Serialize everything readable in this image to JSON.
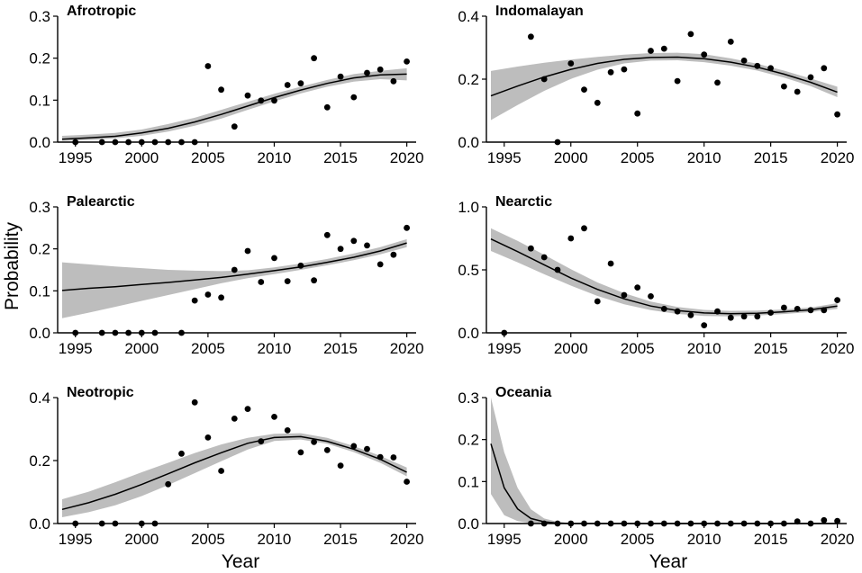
{
  "chart_data": {
    "type": "scatter",
    "xlabel": "Year",
    "ylabel": "Probability",
    "xlim": [
      1994,
      2020.5
    ],
    "x_ticks": [
      1995,
      2000,
      2005,
      2010,
      2015,
      2020
    ],
    "panels": [
      {
        "title": "Afrotropic",
        "ylim": [
          0,
          0.3
        ],
        "y_ticks": [
          "0.0",
          "0.1",
          "0.2",
          "0.3"
        ],
        "points": [
          [
            1995,
            0.0
          ],
          [
            1997,
            0.0
          ],
          [
            1998,
            0.0
          ],
          [
            1999,
            0.0
          ],
          [
            2000,
            0.0
          ],
          [
            2001,
            0.0
          ],
          [
            2002,
            0.0
          ],
          [
            2003,
            0.0
          ],
          [
            2004,
            0.0
          ],
          [
            2005,
            0.181
          ],
          [
            2006,
            0.125
          ],
          [
            2007,
            0.037
          ],
          [
            2008,
            0.111
          ],
          [
            2009,
            0.099
          ],
          [
            2010,
            0.099
          ],
          [
            2011,
            0.136
          ],
          [
            2012,
            0.14
          ],
          [
            2013,
            0.2
          ],
          [
            2014,
            0.083
          ],
          [
            2015,
            0.156
          ],
          [
            2016,
            0.107
          ],
          [
            2017,
            0.165
          ],
          [
            2018,
            0.173
          ],
          [
            2019,
            0.145
          ],
          [
            2020,
            0.192
          ]
        ],
        "fit": {
          "x": [
            1994,
            1996,
            1998,
            2000,
            2002,
            2004,
            2006,
            2008,
            2010,
            2012,
            2014,
            2016,
            2018,
            2020
          ],
          "y": [
            0.007,
            0.01,
            0.014,
            0.022,
            0.033,
            0.048,
            0.066,
            0.086,
            0.106,
            0.124,
            0.14,
            0.153,
            0.16,
            0.162
          ],
          "lower": [
            0.003,
            0.005,
            0.009,
            0.015,
            0.025,
            0.039,
            0.056,
            0.077,
            0.097,
            0.116,
            0.132,
            0.144,
            0.15,
            0.147
          ],
          "upper": [
            0.015,
            0.018,
            0.022,
            0.03,
            0.043,
            0.058,
            0.077,
            0.096,
            0.115,
            0.132,
            0.148,
            0.162,
            0.17,
            0.176
          ]
        }
      },
      {
        "title": "Indomalayan",
        "ylim": [
          0,
          0.4
        ],
        "y_ticks": [
          "0.0",
          "0.2",
          "0.4"
        ],
        "points": [
          [
            1997,
            0.335
          ],
          [
            1998,
            0.2
          ],
          [
            1999,
            0.0
          ],
          [
            2000,
            0.25
          ],
          [
            2001,
            0.167
          ],
          [
            2002,
            0.125
          ],
          [
            2003,
            0.222
          ],
          [
            2004,
            0.231
          ],
          [
            2005,
            0.091
          ],
          [
            2006,
            0.29
          ],
          [
            2007,
            0.297
          ],
          [
            2008,
            0.194
          ],
          [
            2009,
            0.343
          ],
          [
            2010,
            0.278
          ],
          [
            2011,
            0.189
          ],
          [
            2012,
            0.319
          ],
          [
            2013,
            0.259
          ],
          [
            2014,
            0.242
          ],
          [
            2015,
            0.235
          ],
          [
            2016,
            0.177
          ],
          [
            2017,
            0.16
          ],
          [
            2018,
            0.206
          ],
          [
            2019,
            0.235
          ],
          [
            2020,
            0.088
          ]
        ],
        "fit": {
          "x": [
            1994,
            1996,
            1998,
            2000,
            2002,
            2004,
            2006,
            2008,
            2010,
            2012,
            2014,
            2016,
            2018,
            2020
          ],
          "y": [
            0.147,
            0.178,
            0.207,
            0.231,
            0.25,
            0.263,
            0.269,
            0.27,
            0.265,
            0.254,
            0.238,
            0.216,
            0.19,
            0.159
          ],
          "lower": [
            0.07,
            0.118,
            0.163,
            0.201,
            0.23,
            0.25,
            0.259,
            0.26,
            0.254,
            0.243,
            0.227,
            0.205,
            0.178,
            0.143
          ],
          "upper": [
            0.226,
            0.24,
            0.252,
            0.262,
            0.271,
            0.278,
            0.283,
            0.284,
            0.279,
            0.266,
            0.249,
            0.227,
            0.202,
            0.176
          ]
        }
      },
      {
        "title": "Palearctic",
        "ylim": [
          0,
          0.3
        ],
        "y_ticks": [
          "0.0",
          "0.1",
          "0.2",
          "0.3"
        ],
        "points": [
          [
            1995,
            0.0
          ],
          [
            1997,
            0.0
          ],
          [
            1998,
            0.0
          ],
          [
            1999,
            0.0
          ],
          [
            2000,
            0.0
          ],
          [
            2001,
            0.0
          ],
          [
            2003,
            0.0
          ],
          [
            2004,
            0.077
          ],
          [
            2005,
            0.091
          ],
          [
            2006,
            0.084
          ],
          [
            2007,
            0.15
          ],
          [
            2008,
            0.195
          ],
          [
            2009,
            0.121
          ],
          [
            2010,
            0.178
          ],
          [
            2011,
            0.123
          ],
          [
            2012,
            0.16
          ],
          [
            2013,
            0.125
          ],
          [
            2014,
            0.233
          ],
          [
            2015,
            0.2
          ],
          [
            2016,
            0.219
          ],
          [
            2017,
            0.208
          ],
          [
            2018,
            0.163
          ],
          [
            2019,
            0.186
          ],
          [
            2020,
            0.25
          ]
        ],
        "fit": {
          "x": [
            1994,
            1996,
            1998,
            2000,
            2002,
            2004,
            2006,
            2008,
            2010,
            2012,
            2014,
            2016,
            2018,
            2020
          ],
          "y": [
            0.101,
            0.106,
            0.11,
            0.115,
            0.12,
            0.126,
            0.132,
            0.14,
            0.148,
            0.157,
            0.168,
            0.18,
            0.195,
            0.214
          ],
          "lower": [
            0.035,
            0.048,
            0.062,
            0.076,
            0.09,
            0.104,
            0.118,
            0.13,
            0.14,
            0.15,
            0.161,
            0.173,
            0.187,
            0.204
          ],
          "upper": [
            0.168,
            0.163,
            0.158,
            0.154,
            0.15,
            0.148,
            0.147,
            0.149,
            0.156,
            0.165,
            0.176,
            0.189,
            0.204,
            0.223
          ]
        }
      },
      {
        "title": "Nearctic",
        "ylim": [
          0,
          1.0
        ],
        "y_ticks": [
          "0.0",
          "0.5",
          "1.0"
        ],
        "points": [
          [
            1995,
            0.0
          ],
          [
            1997,
            0.67
          ],
          [
            1998,
            0.6
          ],
          [
            1999,
            0.5
          ],
          [
            2000,
            0.75
          ],
          [
            2001,
            0.83
          ],
          [
            2002,
            0.25
          ],
          [
            2003,
            0.55
          ],
          [
            2004,
            0.3
          ],
          [
            2005,
            0.36
          ],
          [
            2006,
            0.29
          ],
          [
            2007,
            0.19
          ],
          [
            2008,
            0.17
          ],
          [
            2009,
            0.14
          ],
          [
            2010,
            0.06
          ],
          [
            2011,
            0.17
          ],
          [
            2012,
            0.12
          ],
          [
            2013,
            0.13
          ],
          [
            2014,
            0.13
          ],
          [
            2015,
            0.16
          ],
          [
            2016,
            0.2
          ],
          [
            2017,
            0.19
          ],
          [
            2018,
            0.18
          ],
          [
            2019,
            0.18
          ],
          [
            2020,
            0.26
          ]
        ],
        "fit": {
          "x": [
            1994,
            1996,
            1998,
            2000,
            2002,
            2004,
            2006,
            2008,
            2010,
            2012,
            2014,
            2016,
            2018,
            2020
          ],
          "y": [
            0.745,
            0.645,
            0.54,
            0.435,
            0.345,
            0.27,
            0.213,
            0.177,
            0.158,
            0.152,
            0.156,
            0.167,
            0.183,
            0.212
          ],
          "lower": [
            0.65,
            0.56,
            0.465,
            0.375,
            0.293,
            0.227,
            0.18,
            0.15,
            0.134,
            0.131,
            0.137,
            0.149,
            0.165,
            0.19
          ],
          "upper": [
            0.83,
            0.73,
            0.62,
            0.505,
            0.4,
            0.315,
            0.248,
            0.205,
            0.182,
            0.174,
            0.177,
            0.186,
            0.201,
            0.236
          ]
        }
      },
      {
        "title": "Neotropic",
        "ylim": [
          0,
          0.4
        ],
        "y_ticks": [
          "0.0",
          "0.2",
          "0.4"
        ],
        "points": [
          [
            1995,
            0.0
          ],
          [
            1997,
            0.0
          ],
          [
            1998,
            0.0
          ],
          [
            2000,
            0.0
          ],
          [
            2001,
            0.0
          ],
          [
            2002,
            0.125
          ],
          [
            2003,
            0.222
          ],
          [
            2004,
            0.385
          ],
          [
            2005,
            0.273
          ],
          [
            2006,
            0.167
          ],
          [
            2007,
            0.333
          ],
          [
            2008,
            0.364
          ],
          [
            2009,
            0.261
          ],
          [
            2010,
            0.339
          ],
          [
            2011,
            0.296
          ],
          [
            2012,
            0.226
          ],
          [
            2013,
            0.259
          ],
          [
            2014,
            0.233
          ],
          [
            2015,
            0.184
          ],
          [
            2016,
            0.246
          ],
          [
            2017,
            0.237
          ],
          [
            2018,
            0.211
          ],
          [
            2019,
            0.21
          ],
          [
            2020,
            0.133
          ]
        ],
        "fit": {
          "x": [
            1994,
            1996,
            1998,
            2000,
            2002,
            2004,
            2006,
            2008,
            2010,
            2012,
            2014,
            2016,
            2018,
            2020
          ],
          "y": [
            0.045,
            0.066,
            0.093,
            0.124,
            0.158,
            0.193,
            0.225,
            0.255,
            0.273,
            0.276,
            0.261,
            0.236,
            0.204,
            0.163
          ],
          "lower": [
            0.02,
            0.036,
            0.058,
            0.087,
            0.122,
            0.16,
            0.198,
            0.235,
            0.262,
            0.267,
            0.253,
            0.227,
            0.193,
            0.15
          ],
          "upper": [
            0.077,
            0.101,
            0.131,
            0.163,
            0.193,
            0.224,
            0.251,
            0.272,
            0.285,
            0.287,
            0.272,
            0.246,
            0.215,
            0.178
          ]
        }
      },
      {
        "title": "Oceania",
        "ylim": [
          0,
          0.3
        ],
        "y_ticks": [
          "0.0",
          "0.1",
          "0.2",
          "0.3"
        ],
        "points": [
          [
            1997,
            0.0
          ],
          [
            1998,
            0.0
          ],
          [
            1999,
            0.0
          ],
          [
            2000,
            0.0
          ],
          [
            2001,
            0.0
          ],
          [
            2002,
            0.0
          ],
          [
            2003,
            0.0
          ],
          [
            2004,
            0.0
          ],
          [
            2005,
            0.0
          ],
          [
            2006,
            0.0
          ],
          [
            2007,
            0.0
          ],
          [
            2008,
            0.0
          ],
          [
            2009,
            0.0
          ],
          [
            2010,
            0.0
          ],
          [
            2011,
            0.0
          ],
          [
            2012,
            0.0
          ],
          [
            2013,
            0.0
          ],
          [
            2014,
            0.0
          ],
          [
            2015,
            0.0
          ],
          [
            2016,
            0.0
          ],
          [
            2017,
            0.005
          ],
          [
            2018,
            0.0
          ],
          [
            2019,
            0.008
          ],
          [
            2020,
            0.006
          ]
        ],
        "fit": {
          "x": [
            1994,
            1995,
            1996,
            1997,
            1998,
            1999,
            2000,
            2001,
            2002,
            2004,
            2006,
            2010,
            2015,
            2020
          ],
          "y": [
            0.19,
            0.085,
            0.035,
            0.012,
            0.004,
            0.001,
            0.0,
            0.0,
            0.0,
            0.0,
            0.0,
            0.0,
            0.0,
            0.0
          ],
          "lower": [
            0.07,
            0.02,
            0.006,
            0.001,
            0.0,
            0.0,
            0.0,
            0.0,
            0.0,
            0.0,
            0.0,
            0.0,
            0.0,
            0.0
          ],
          "upper": [
            0.3,
            0.17,
            0.085,
            0.034,
            0.012,
            0.004,
            0.001,
            0.0,
            0.0,
            0.0,
            0.0,
            0.0,
            0.0,
            0.0
          ]
        }
      }
    ]
  }
}
